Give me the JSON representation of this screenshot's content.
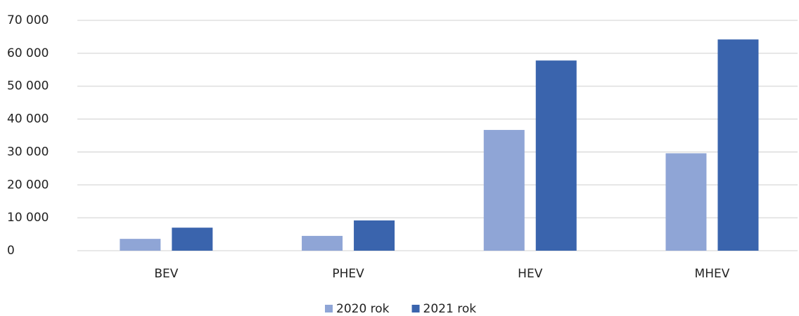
{
  "chart_data": {
    "type": "bar",
    "categories": [
      "BEV",
      "PHEV",
      "HEV",
      "MHEV"
    ],
    "series": [
      {
        "name": "2020 rok",
        "color": "#8fa5d6",
        "values": [
          3600,
          4500,
          36700,
          29600
        ]
      },
      {
        "name": "2021 rok",
        "color": "#3a64ad",
        "values": [
          7000,
          9200,
          57800,
          64200
        ]
      }
    ],
    "ylim": [
      0,
      70000
    ],
    "yticks": [
      0,
      {
        "value": 10000,
        "label": "10 000"
      },
      {
        "value": 20000,
        "label": "20 000"
      },
      {
        "value": 30000,
        "label": "30 000"
      },
      {
        "value": 40000,
        "label": "40 000"
      },
      {
        "value": 50000,
        "label": "50 000"
      },
      {
        "value": 60000,
        "label": "60 000"
      },
      {
        "value": 70000,
        "label": "70 000"
      }
    ],
    "grid": true,
    "legend": "bottom"
  }
}
